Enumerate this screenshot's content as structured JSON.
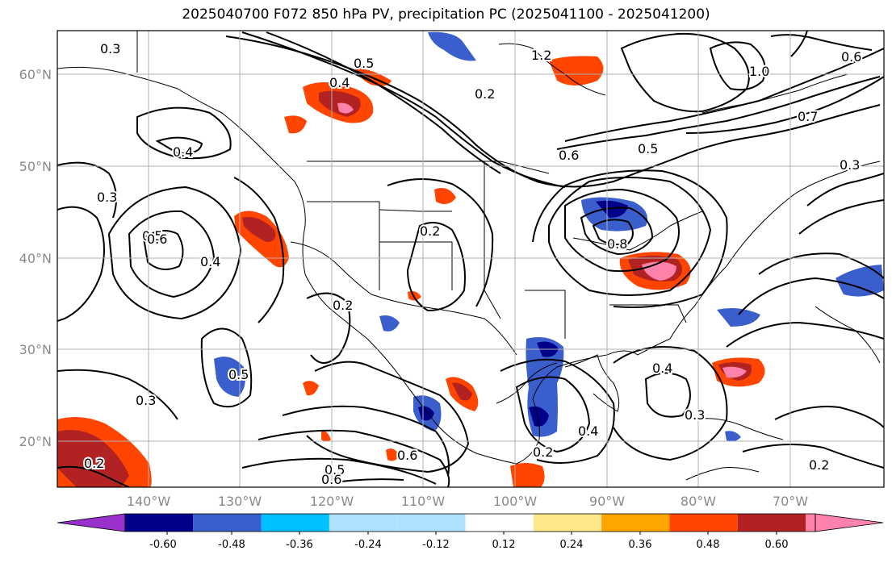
{
  "title": "2025040700 F072 850 hPa PV, precipitation PC (2025041100 - 2025041200)",
  "map": {
    "lat_labels": [
      "60°N",
      "50°N",
      "40°N",
      "30°N",
      "20°N"
    ],
    "lon_labels": [
      "140°W",
      "130°W",
      "120°W",
      "110°W",
      "100°W",
      "90°W",
      "80°W",
      "70°W"
    ],
    "contour_labels": [
      "0.3",
      "0.4",
      "0.5",
      "0.6",
      "0.2",
      "0.8",
      "1.2",
      "1.0",
      "0.7",
      "0.5",
      "0.6",
      "0.3",
      "0.4",
      "0.2",
      "0.5",
      "0.6",
      "0.4",
      "0.3",
      "0.5",
      "0.2",
      "0.6",
      "0.3",
      "0.2",
      "0.3",
      "0.4",
      "0.5",
      "0.6",
      "0.4",
      "0.2",
      "0.2"
    ]
  },
  "colorbar": {
    "ticks": [
      "-0.60",
      "-0.48",
      "-0.36",
      "-0.24",
      "-0.12",
      "0.12",
      "0.24",
      "0.36",
      "0.48",
      "0.60"
    ],
    "colors": [
      "#9932cc",
      "#00008b",
      "#3a5fcd",
      "#00bfff",
      "#b0e0ff",
      "#ffffff",
      "#ffe88a",
      "#ffa500",
      "#ff4500",
      "#b22222",
      "#ff82ab",
      "#ff82ab"
    ]
  }
}
